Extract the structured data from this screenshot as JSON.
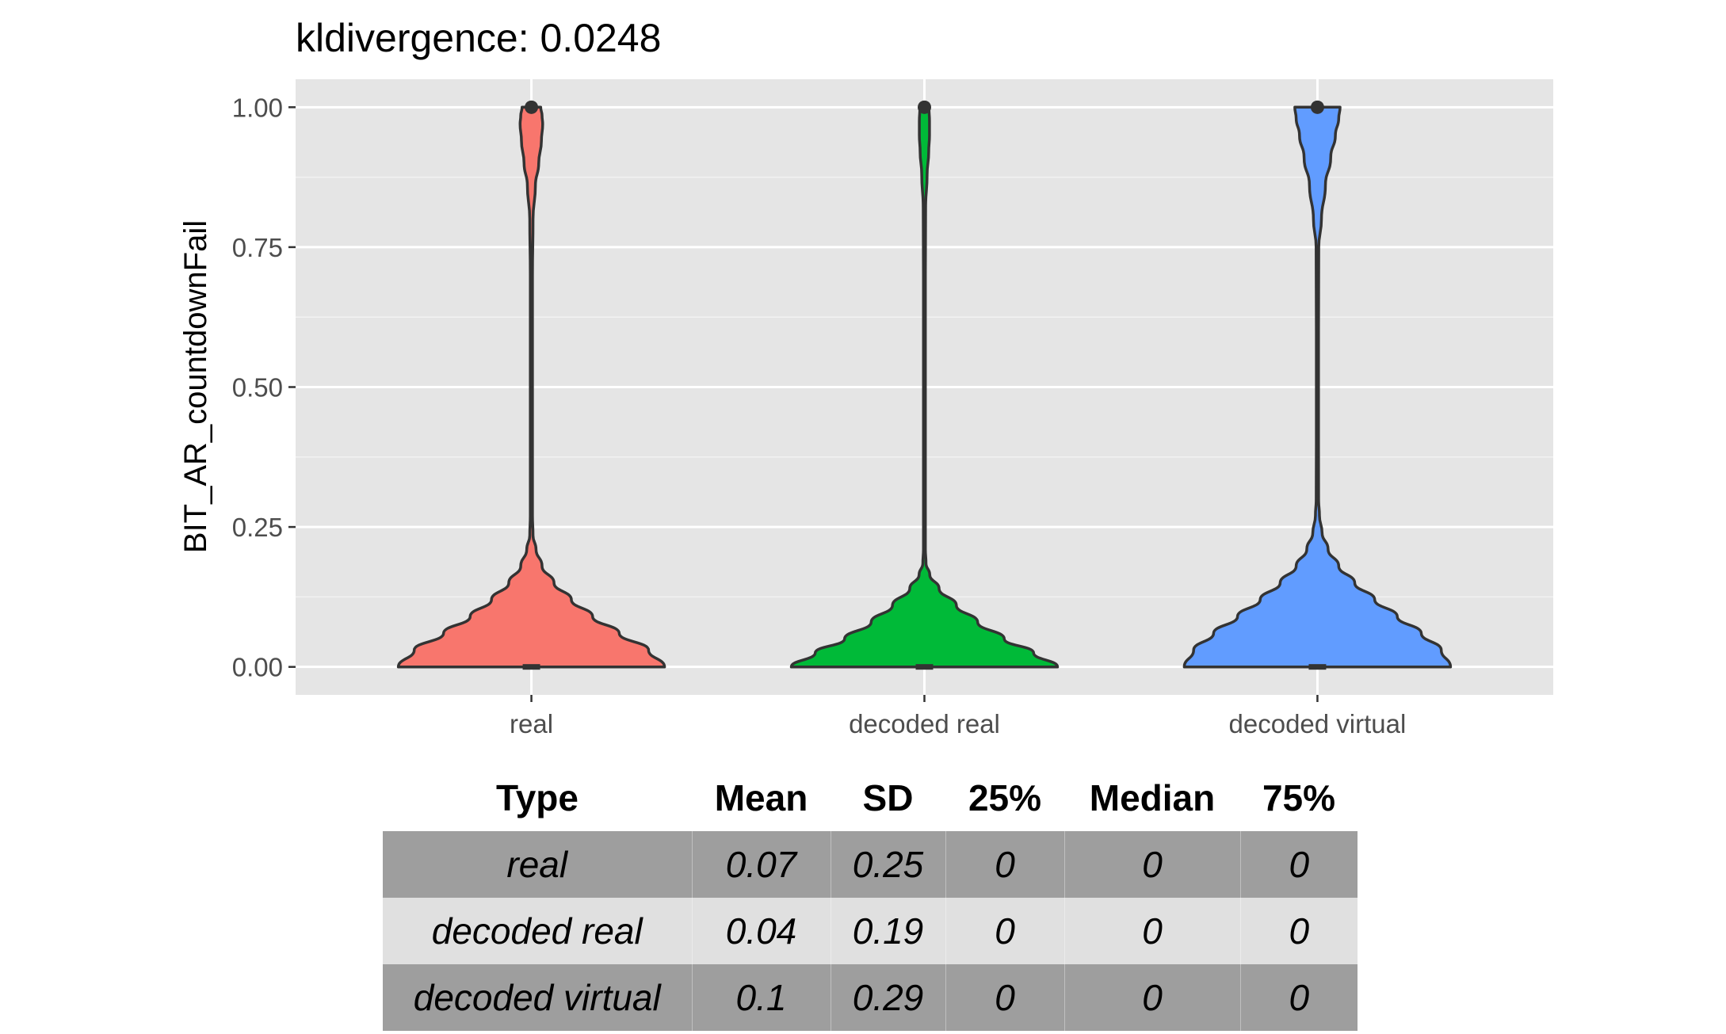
{
  "chart_data": {
    "type": "violin",
    "title": "kldivergence: 0.0248",
    "xlabel": "",
    "ylabel": "BIT_AR_countdownFail",
    "ylim": [
      -0.05,
      1.05
    ],
    "yticks": [
      0.0,
      0.25,
      0.5,
      0.75,
      1.0
    ],
    "ytick_labels": [
      "0.00",
      "0.25",
      "0.50",
      "0.75",
      "1.00"
    ],
    "categories": [
      "real",
      "decoded real",
      "decoded virtual"
    ],
    "colors": [
      "#F8766D",
      "#00BA38",
      "#619CFF"
    ],
    "series": [
      {
        "name": "real",
        "median": 0,
        "outlier": 1.0,
        "density_shape": {
          "y": [
            0,
            0.03,
            0.06,
            0.09,
            0.12,
            0.15,
            0.18,
            0.21,
            0.235,
            0.27,
            0.35,
            0.5,
            0.7,
            0.8,
            0.86,
            0.9,
            0.94,
            0.97,
            0.985,
            1.0
          ],
          "w": [
            1.0,
            0.88,
            0.66,
            0.46,
            0.3,
            0.17,
            0.08,
            0.035,
            0.012,
            0.008,
            0.008,
            0.008,
            0.008,
            0.012,
            0.03,
            0.055,
            0.075,
            0.085,
            0.08,
            0.07
          ]
        }
      },
      {
        "name": "decoded real",
        "median": 0,
        "outlier": 1.0,
        "density_shape": {
          "y": [
            0,
            0.025,
            0.05,
            0.08,
            0.11,
            0.14,
            0.165,
            0.185,
            0.21,
            0.3,
            0.5,
            0.7,
            0.82,
            0.88,
            0.92,
            0.95,
            0.975,
            1.0
          ],
          "w": [
            1.0,
            0.82,
            0.6,
            0.4,
            0.24,
            0.11,
            0.04,
            0.012,
            0.007,
            0.007,
            0.007,
            0.007,
            0.009,
            0.02,
            0.032,
            0.038,
            0.038,
            0.034
          ]
        }
      },
      {
        "name": "decoded virtual",
        "median": 0,
        "outlier": 1.0,
        "density_shape": {
          "y": [
            0,
            0.03,
            0.06,
            0.09,
            0.12,
            0.15,
            0.18,
            0.21,
            0.24,
            0.27,
            0.3,
            0.4,
            0.6,
            0.75,
            0.8,
            0.86,
            0.91,
            0.95,
            0.98,
            1.0
          ],
          "w": [
            1.0,
            0.93,
            0.78,
            0.6,
            0.43,
            0.28,
            0.16,
            0.08,
            0.035,
            0.015,
            0.009,
            0.008,
            0.008,
            0.01,
            0.03,
            0.06,
            0.1,
            0.135,
            0.16,
            0.17
          ]
        }
      }
    ]
  },
  "table": {
    "headers": [
      "Type",
      "Mean",
      "SD",
      "25%",
      "Median",
      "75%"
    ],
    "rows": [
      [
        "real",
        "0.07",
        "0.25",
        "0",
        "0",
        "0"
      ],
      [
        "decoded real",
        "0.04",
        "0.19",
        "0",
        "0",
        "0"
      ],
      [
        "decoded virtual",
        "0.1",
        "0.29",
        "0",
        "0",
        "0"
      ]
    ]
  }
}
